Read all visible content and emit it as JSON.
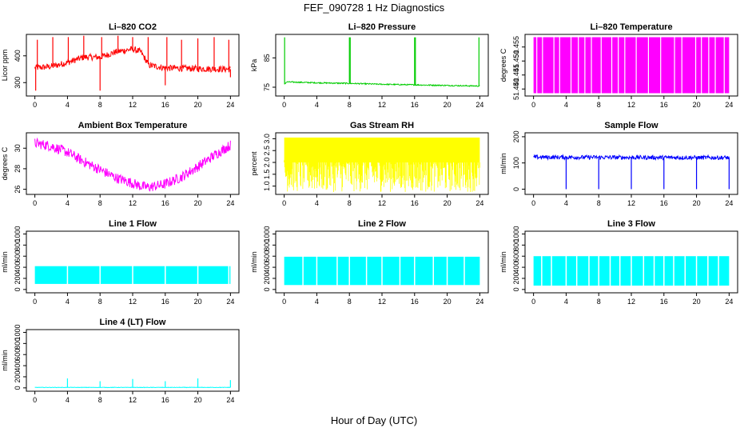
{
  "page": {
    "title": "FEF_090728  1 Hz Diagnostics",
    "xlabel": "Hour of Day (UTC)"
  },
  "colors": {
    "red": "#ff0000",
    "green": "#00cc00",
    "magenta": "#ff00ff",
    "yellow": "#ffff00",
    "blue": "#0000ff",
    "cyan": "#00ffff"
  },
  "chart_data": [
    {
      "id": "co2",
      "title": "Li–820 CO2",
      "type": "line",
      "ylabel": "Licor ppm",
      "color": "#ff0000",
      "xlim": [
        0,
        24
      ],
      "xticks": [
        0,
        4,
        8,
        12,
        16,
        20,
        24
      ],
      "ylim": [
        250,
        480
      ],
      "yticks": [
        300,
        400
      ],
      "baseline": [
        [
          0,
          355
        ],
        [
          2,
          360
        ],
        [
          4,
          375
        ],
        [
          6,
          395
        ],
        [
          8,
          395
        ],
        [
          10,
          415
        ],
        [
          12,
          425
        ],
        [
          13,
          415
        ],
        [
          14,
          365
        ],
        [
          16,
          355
        ],
        [
          20,
          352
        ],
        [
          24,
          350
        ]
      ],
      "noise": 12,
      "spikes": [
        {
          "x": 0.1,
          "y": 270
        },
        {
          "x": 0.3,
          "y": 460
        },
        {
          "x": 2.2,
          "y": 470
        },
        {
          "x": 4.1,
          "y": 470
        },
        {
          "x": 6.0,
          "y": 475
        },
        {
          "x": 8.0,
          "y": 270
        },
        {
          "x": 8.2,
          "y": 470
        },
        {
          "x": 10.2,
          "y": 475
        },
        {
          "x": 12.0,
          "y": 470
        },
        {
          "x": 13.9,
          "y": 470
        },
        {
          "x": 16.0,
          "y": 290
        },
        {
          "x": 16.2,
          "y": 470
        },
        {
          "x": 18.0,
          "y": 460
        },
        {
          "x": 20.0,
          "y": 465
        },
        {
          "x": 22.0,
          "y": 470
        },
        {
          "x": 23.8,
          "y": 460
        },
        {
          "x": 24.0,
          "y": 320
        }
      ]
    },
    {
      "id": "pressure",
      "title": "Li–820 Pressure",
      "type": "line",
      "ylabel": "kPa",
      "color": "#00cc00",
      "xlim": [
        0,
        24
      ],
      "xticks": [
        0,
        4,
        8,
        12,
        16,
        20,
        24
      ],
      "ylim": [
        72,
        93
      ],
      "yticks": [
        75,
        85
      ],
      "baseline": [
        [
          0,
          76
        ],
        [
          0.3,
          76.8
        ],
        [
          4,
          76.5
        ],
        [
          8,
          76.3
        ],
        [
          12,
          76.0
        ],
        [
          16,
          75.8
        ],
        [
          20,
          75.6
        ],
        [
          24,
          75.4
        ]
      ],
      "noise": 0.2,
      "spikes": [
        {
          "x": 0.05,
          "y": 92
        },
        {
          "x": 8.0,
          "y": 92
        },
        {
          "x": 8.1,
          "y": 92
        },
        {
          "x": 16.0,
          "y": 92
        },
        {
          "x": 16.1,
          "y": 92
        },
        {
          "x": 23.9,
          "y": 92
        }
      ]
    },
    {
      "id": "licor-temp",
      "title": "Li–820 Temperature",
      "type": "line",
      "ylabel": "degrees C",
      "color": "#ff00ff",
      "xlim": [
        0,
        24
      ],
      "xticks": [
        0,
        4,
        8,
        12,
        16,
        20,
        24
      ],
      "ylim": [
        51.4375,
        51.4595
      ],
      "yticks": [
        51.44,
        51.445,
        51.45,
        51.455
      ],
      "band": {
        "low": 51.4385,
        "high": 51.4585
      },
      "gaps": [
        0.4,
        1.1,
        2.5,
        3.2,
        4.6,
        5.5,
        6.3,
        7.1,
        8.3,
        9.6,
        10.4,
        11.2,
        12.6,
        14.1,
        15.6,
        17.3,
        18.2,
        19.9,
        20.6,
        21.5,
        22.3,
        23.4
      ]
    },
    {
      "id": "ambient-temp",
      "title": "Ambient Box Temperature",
      "type": "line",
      "ylabel": "degrees C",
      "color": "#ff00ff",
      "xlim": [
        0,
        24
      ],
      "xticks": [
        0,
        4,
        8,
        12,
        16,
        20,
        24
      ],
      "ylim": [
        25.5,
        31.5
      ],
      "yticks": [
        26,
        28,
        30
      ],
      "baseline": [
        [
          0,
          30.5
        ],
        [
          2,
          30.2
        ],
        [
          4,
          29.6
        ],
        [
          6,
          28.7
        ],
        [
          8,
          27.9
        ],
        [
          10,
          27.1
        ],
        [
          12,
          26.6
        ],
        [
          13,
          26.3
        ],
        [
          14,
          26.2
        ],
        [
          16,
          26.5
        ],
        [
          18,
          27.2
        ],
        [
          20,
          28.2
        ],
        [
          22,
          29.3
        ],
        [
          24,
          30.3
        ]
      ],
      "noise": 0.5
    },
    {
      "id": "rh",
      "title": "Gas Stream RH",
      "type": "line",
      "ylabel": "percent",
      "color": "#ffff00",
      "xlim": [
        0,
        24
      ],
      "xticks": [
        0,
        4,
        8,
        12,
        16,
        20,
        24
      ],
      "ylim": [
        0.65,
        3.25
      ],
      "yticks": [
        1.0,
        1.5,
        2.0,
        2.5,
        3.0
      ],
      "band": {
        "low": 0.75,
        "high": 3.05
      },
      "dense_low": 2.0
    },
    {
      "id": "sample-flow",
      "title": "Sample Flow",
      "type": "line",
      "ylabel": "ml/min",
      "color": "#0000ff",
      "xlim": [
        0,
        24
      ],
      "xticks": [
        0,
        4,
        8,
        12,
        16,
        20,
        24
      ],
      "ylim": [
        -20,
        215
      ],
      "yticks": [
        0,
        100,
        200
      ],
      "baseline": [
        [
          0,
          122
        ],
        [
          24,
          120
        ]
      ],
      "noise": 8,
      "dips": [
        {
          "x": 4.0,
          "y": 0
        },
        {
          "x": 8.0,
          "y": 0
        },
        {
          "x": 12.0,
          "y": 0
        },
        {
          "x": 16.0,
          "y": 0
        },
        {
          "x": 20.0,
          "y": 0
        },
        {
          "x": 24.0,
          "y": 0
        }
      ]
    },
    {
      "id": "line1",
      "title": "Line 1 Flow",
      "type": "area",
      "ylabel": "ml/min",
      "color": "#00ffff",
      "xlim": [
        0,
        24
      ],
      "xticks": [
        0,
        4,
        8,
        12,
        16,
        20,
        24
      ],
      "ylim": [
        -60,
        1050
      ],
      "yticks": [
        0,
        200,
        400,
        600,
        800,
        1000
      ],
      "band": {
        "low": 100,
        "high": 420
      },
      "gaps": [
        4.0,
        8.0,
        12.0,
        16.0,
        20.0,
        23.8
      ]
    },
    {
      "id": "line2",
      "title": "Line 2 Flow",
      "type": "area",
      "ylabel": "ml/min",
      "color": "#00ffff",
      "xlim": [
        0,
        24
      ],
      "xticks": [
        0,
        4,
        8,
        12,
        16,
        20,
        24
      ],
      "ylim": [
        -60,
        1050
      ],
      "yticks": [
        0,
        200,
        400,
        600,
        800,
        1000
      ],
      "band": {
        "low": 80,
        "high": 590
      },
      "gaps": [
        2.3,
        4.0,
        6.5,
        8.0,
        10.1,
        12.0,
        14.2,
        16.0,
        18.3,
        20.0,
        22.1
      ]
    },
    {
      "id": "line3",
      "title": "Line 3 Flow",
      "type": "area",
      "ylabel": "ml/min",
      "color": "#00ffff",
      "xlim": [
        0,
        24
      ],
      "xticks": [
        0,
        4,
        8,
        12,
        16,
        20,
        24
      ],
      "ylim": [
        -60,
        1050
      ],
      "yticks": [
        0,
        200,
        400,
        600,
        800,
        1000
      ],
      "band": {
        "low": 70,
        "high": 600
      },
      "gaps": [
        1.0,
        2.2,
        4.0,
        5.3,
        6.8,
        8.0,
        9.4,
        10.6,
        12.0,
        13.5,
        14.8,
        16.0,
        17.2,
        18.6,
        20.0,
        21.4,
        22.7
      ]
    },
    {
      "id": "line4",
      "title": "Line 4 (LT) Flow",
      "type": "line",
      "ylabel": "ml/min",
      "color": "#00ffff",
      "xlim": [
        0,
        24
      ],
      "xticks": [
        0,
        4,
        8,
        12,
        16,
        20,
        24
      ],
      "ylim": [
        -60,
        1050
      ],
      "yticks": [
        0,
        200,
        400,
        600,
        800,
        1000
      ],
      "baseline": [
        [
          0,
          8
        ],
        [
          24,
          8
        ]
      ],
      "noise": 4,
      "spikes": [
        {
          "x": 4.0,
          "y": 170
        },
        {
          "x": 8.0,
          "y": 120
        },
        {
          "x": 12.0,
          "y": 160
        },
        {
          "x": 16.0,
          "y": 120
        },
        {
          "x": 20.0,
          "y": 170
        },
        {
          "x": 24.0,
          "y": 140
        }
      ]
    }
  ]
}
